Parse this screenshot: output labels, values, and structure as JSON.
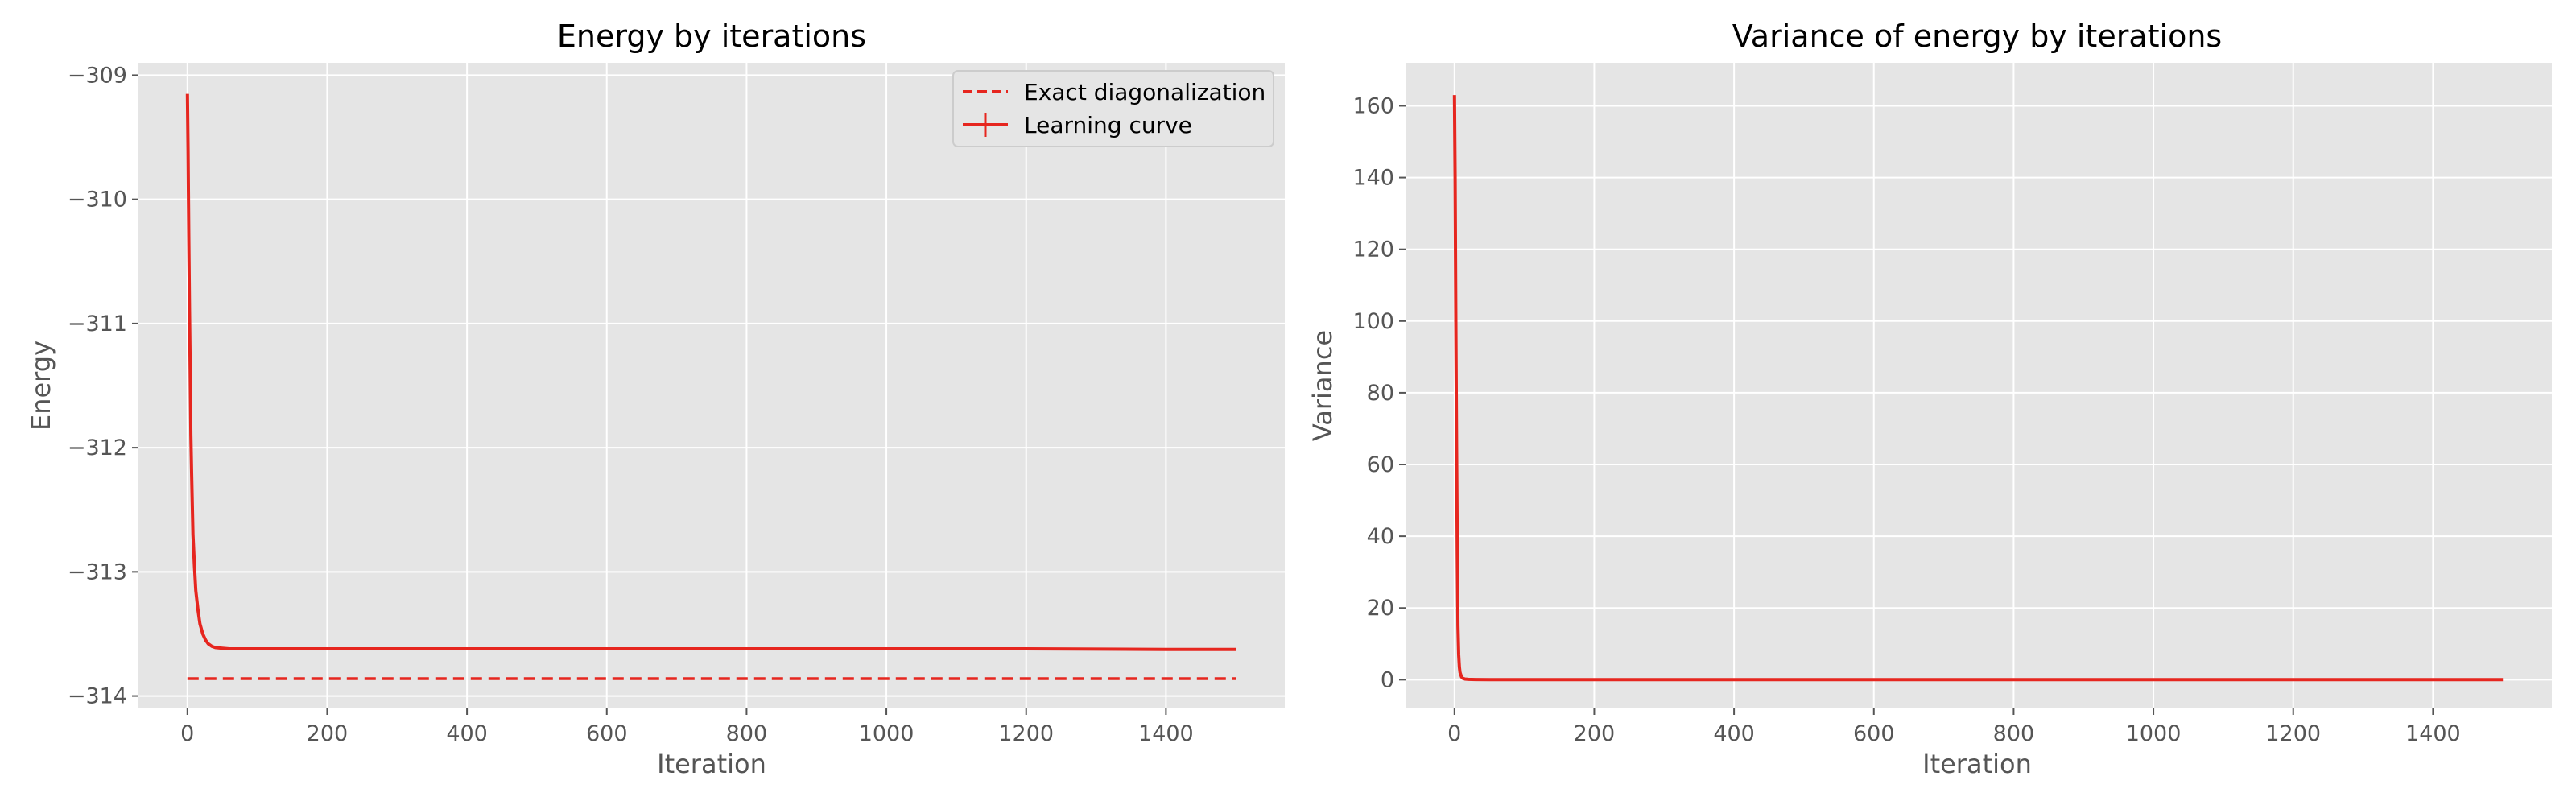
{
  "colors": {
    "background": "#ffffff",
    "plot_background": "#e5e5e5",
    "grid": "#ffffff",
    "tick": "#555555",
    "series": "#e6261f",
    "exact_line": "#e6261f"
  },
  "chart_data": [
    {
      "type": "line",
      "title": "Energy by iterations",
      "xlabel": "Iteration",
      "ylabel": "Energy",
      "xlim": [
        -70,
        1570
      ],
      "ylim": [
        -314.1,
        -308.9
      ],
      "xticks": [
        0,
        200,
        400,
        600,
        800,
        1000,
        1200,
        1400
      ],
      "yticks": [
        -314,
        -313,
        -312,
        -311,
        -310,
        -309
      ],
      "ytick_labels": [
        "−314",
        "−313",
        "−312",
        "−311",
        "−310",
        "−309"
      ],
      "grid": true,
      "legend": {
        "placement": "upper-right",
        "entries": [
          {
            "label": "Exact diagonalization",
            "style": "dashed"
          },
          {
            "label": "Learning curve",
            "style": "solid-errorbar"
          }
        ]
      },
      "series": [
        {
          "name": "Learning curve",
          "x": [
            0,
            1,
            2,
            3,
            4,
            5,
            6,
            8,
            10,
            12,
            15,
            18,
            22,
            26,
            30,
            35,
            40,
            50,
            60,
            80,
            100,
            200,
            400,
            600,
            800,
            1000,
            1200,
            1400,
            1500
          ],
          "y": [
            -309.15,
            -309.6,
            -310.3,
            -310.9,
            -311.4,
            -311.9,
            -312.2,
            -312.7,
            -312.95,
            -313.15,
            -313.3,
            -313.42,
            -313.5,
            -313.55,
            -313.58,
            -313.6,
            -313.61,
            -313.615,
            -313.62,
            -313.62,
            -313.62,
            -313.62,
            -313.62,
            -313.62,
            -313.62,
            -313.62,
            -313.62,
            -313.625,
            -313.625
          ]
        },
        {
          "name": "Exact diagonalization",
          "x": [
            0,
            1500
          ],
          "y": [
            -313.86,
            -313.86
          ]
        }
      ]
    },
    {
      "type": "line",
      "title": "Variance of energy by iterations",
      "xlabel": "Iteration",
      "ylabel": "Variance",
      "xlim": [
        -70,
        1570
      ],
      "ylim": [
        -8,
        172
      ],
      "xticks": [
        0,
        200,
        400,
        600,
        800,
        1000,
        1200,
        1400
      ],
      "yticks": [
        0,
        20,
        40,
        60,
        80,
        100,
        120,
        140,
        160
      ],
      "grid": true,
      "series": [
        {
          "x": [
            0,
            1,
            2,
            3,
            4,
            5,
            6,
            7,
            8,
            10,
            12,
            15,
            20,
            30,
            50,
            100,
            200,
            400,
            600,
            800,
            1000,
            1200,
            1400,
            1500
          ],
          "y": [
            163,
            140,
            100,
            65,
            35,
            15,
            7,
            3.5,
            2,
            0.8,
            0.4,
            0.2,
            0.1,
            0.05,
            0.03,
            0.02,
            0.02,
            0.02,
            0.02,
            0.02,
            0.02,
            0.02,
            0.02,
            0.02
          ]
        }
      ]
    }
  ]
}
